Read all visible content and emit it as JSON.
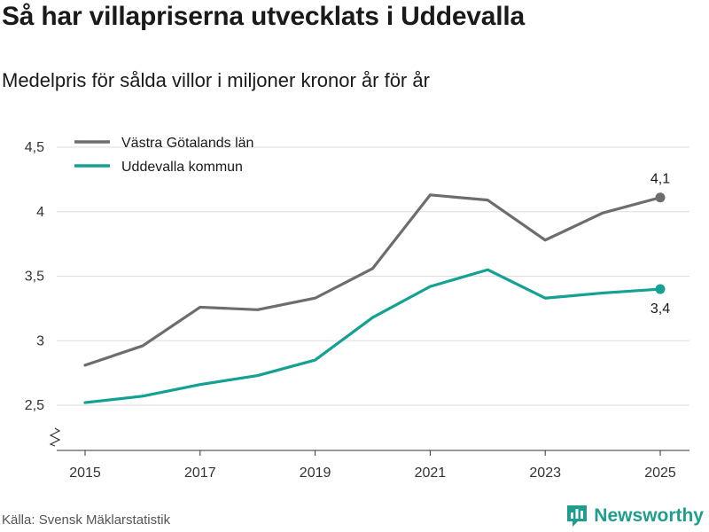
{
  "header": {
    "title": "Så har villapriserna utvecklats i Uddevalla",
    "subtitle": "Medelpris för sålda villor i miljoner kronor år för år"
  },
  "footer": {
    "source": "Källa: Svensk Mäklarstatistik",
    "brand": "Newsworthy"
  },
  "colors": {
    "vastra_gotaland": "#6d6c71",
    "uddevalla": "#12a192",
    "grid": "#dddddd",
    "axis": "#333333"
  },
  "chart_data": {
    "type": "line",
    "title": "Så har villapriserna utvecklats i Uddevalla",
    "subtitle": "Medelpris för sålda villor i miljoner kronor år för år",
    "xlabel": "",
    "ylabel": "",
    "x": [
      2015,
      2016,
      2017,
      2018,
      2019,
      2020,
      2021,
      2022,
      2023,
      2024,
      2025
    ],
    "xticks": [
      "2015",
      "2017",
      "2019",
      "2021",
      "2023",
      "2025"
    ],
    "yticks": [
      "2,5",
      "3",
      "3,5",
      "4",
      "4,5"
    ],
    "ylim": [
      2.2,
      4.6
    ],
    "legend_position": "top-left",
    "series": [
      {
        "name": "Västra Götalands län",
        "color": "#6d6c71",
        "values": [
          2.81,
          2.96,
          3.26,
          3.24,
          3.33,
          3.56,
          4.13,
          4.09,
          3.78,
          3.99,
          4.11
        ],
        "end_label": "4,1"
      },
      {
        "name": "Uddevalla kommun",
        "color": "#12a192",
        "values": [
          2.52,
          2.57,
          2.66,
          2.73,
          2.85,
          3.18,
          3.42,
          3.55,
          3.33,
          3.37,
          3.4
        ],
        "end_label": "3,4"
      }
    ]
  }
}
